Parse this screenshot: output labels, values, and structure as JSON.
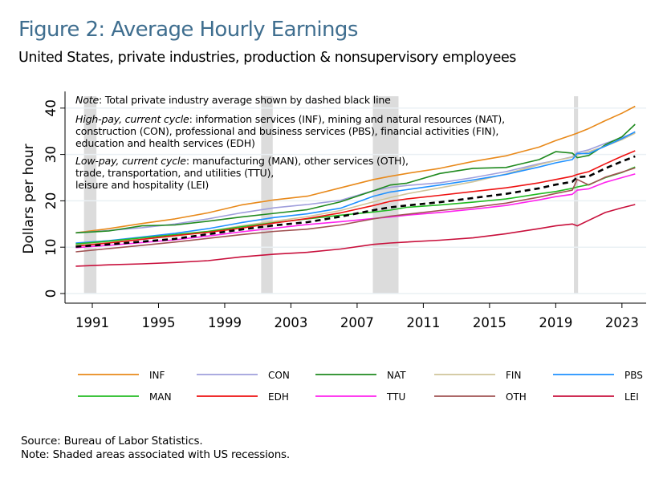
{
  "header": {
    "title": "Figure 2: Average Hourly Earnings",
    "subtitle": "United States, private industries, production & nonsupervisory employees"
  },
  "notes": {
    "note_label": "Note",
    "note_text": ": Total private industry average shown by dashed black line",
    "high_label": "High-pay, current cycle",
    "high_lines": [
      ": information services (INF), mining and natural resources (NAT),",
      "construction (CON), professional and business services (PBS), financial activities (FIN),",
      "education and health services (EDH)"
    ],
    "low_label": "Low-pay, current cycle",
    "low_lines": [
      ": manufacturing (MAN), other services (OTH),",
      "trade, transportation, and utilities (TTU),",
      "leisure and hospitality (LEI)"
    ]
  },
  "footer": {
    "source": "Source: Bureau of Labor Statistics.",
    "note": "Note: Shaded areas associated with US recessions."
  },
  "chart_data": {
    "type": "line",
    "title": "Figure 2: Average Hourly Earnings",
    "subtitle": "United States, private industries, production & nonsupervisory employees",
    "xlabel": "",
    "ylabel": "Dollars per hour",
    "xlim": [
      1990,
      2024
    ],
    "ylim": [
      0,
      42
    ],
    "xticks": [
      1991,
      1995,
      1999,
      2003,
      2007,
      2011,
      2015,
      2019,
      2023
    ],
    "yticks": [
      0,
      10,
      20,
      30,
      40
    ],
    "grid": true,
    "legend_position": "bottom",
    "recessions": [
      {
        "start": 1990.5,
        "end": 1991.25
      },
      {
        "start": 2001.2,
        "end": 2001.9
      },
      {
        "start": 2007.95,
        "end": 2009.5
      },
      {
        "start": 2020.1,
        "end": 2020.35
      }
    ],
    "x": [
      1990,
      1992,
      1994,
      1996,
      1998,
      2000,
      2002,
      2004,
      2006,
      2008,
      2009,
      2010,
      2012,
      2014,
      2016,
      2018,
      2019,
      2020,
      2020.3,
      2021,
      2022,
      2023,
      2023.8
    ],
    "series": [
      {
        "name": "INF",
        "color": "#e8891a",
        "dashed": false,
        "values": [
          13.1,
          14.0,
          15.1,
          16.1,
          17.4,
          19.1,
          20.2,
          21.0,
          22.8,
          24.6,
          25.3,
          25.9,
          27.0,
          28.5,
          29.7,
          31.6,
          33.0,
          34.2,
          34.6,
          35.6,
          37.3,
          38.9,
          40.4
        ]
      },
      {
        "name": "CON",
        "color": "#9f9fdc",
        "dashed": false,
        "values": [
          13.1,
          13.6,
          14.2,
          15.0,
          16.1,
          17.4,
          18.5,
          19.2,
          20.1,
          22.2,
          22.9,
          23.3,
          23.9,
          25.0,
          26.3,
          28.0,
          28.7,
          29.5,
          30.4,
          31.0,
          32.4,
          33.6,
          34.8
        ]
      },
      {
        "name": "NAT",
        "color": "#1f8a1f",
        "dashed": false,
        "values": [
          13.1,
          13.5,
          14.6,
          14.8,
          15.6,
          16.5,
          17.3,
          18.1,
          19.8,
          22.2,
          23.4,
          23.8,
          25.9,
          27.0,
          27.2,
          28.9,
          30.6,
          30.3,
          29.3,
          29.8,
          32.1,
          33.8,
          36.5
        ]
      },
      {
        "name": "FIN",
        "color": "#cfc49a",
        "dashed": false,
        "values": [
          10.5,
          11.0,
          11.7,
          12.4,
          13.4,
          14.6,
          15.6,
          16.6,
          17.9,
          19.8,
          20.7,
          21.5,
          22.8,
          24.1,
          25.8,
          27.8,
          28.7,
          29.4,
          29.9,
          30.6,
          31.8,
          33.2,
          34.6
        ]
      },
      {
        "name": "PBS",
        "color": "#1e90ff",
        "dashed": false,
        "values": [
          10.9,
          11.4,
          12.2,
          13.0,
          14.0,
          15.3,
          16.4,
          17.2,
          18.4,
          21.0,
          21.9,
          22.4,
          23.4,
          24.5,
          25.7,
          27.3,
          28.2,
          28.9,
          30.2,
          30.2,
          31.8,
          33.4,
          34.9
        ]
      },
      {
        "name": "MAN",
        "color": "#22bb22",
        "dashed": false,
        "values": [
          10.7,
          11.3,
          12.0,
          12.7,
          13.4,
          14.4,
          15.3,
          16.1,
          16.9,
          17.6,
          18.0,
          18.6,
          19.1,
          19.7,
          20.4,
          21.5,
          22.0,
          22.7,
          23.0,
          23.5,
          25.0,
          26.1,
          27.3
        ]
      },
      {
        "name": "EDH",
        "color": "#ee1111",
        "dashed": false,
        "values": [
          10.2,
          10.9,
          11.7,
          12.5,
          13.2,
          14.1,
          15.2,
          16.2,
          17.4,
          19.0,
          19.9,
          20.4,
          21.2,
          22.0,
          22.8,
          23.9,
          24.6,
          25.3,
          25.7,
          26.3,
          28.0,
          29.6,
          30.8
        ]
      },
      {
        "name": "TTU",
        "color": "#ff22ee",
        "dashed": false,
        "values": [
          9.9,
          10.4,
          11.0,
          11.6,
          12.4,
          13.3,
          14.1,
          14.9,
          15.5,
          16.2,
          16.5,
          16.9,
          17.5,
          18.2,
          19.0,
          20.2,
          20.9,
          21.4,
          22.3,
          22.6,
          24.0,
          25.0,
          25.8
        ]
      },
      {
        "name": "OTH",
        "color": "#a05252",
        "dashed": false,
        "values": [
          9.0,
          9.7,
          10.4,
          11.1,
          11.9,
          12.7,
          13.4,
          13.9,
          14.8,
          16.1,
          16.7,
          17.1,
          17.9,
          18.6,
          19.5,
          20.8,
          21.6,
          22.3,
          24.6,
          23.4,
          25.1,
          26.2,
          27.1
        ]
      },
      {
        "name": "LEI",
        "color": "#c8103c",
        "dashed": false,
        "values": [
          5.9,
          6.2,
          6.4,
          6.7,
          7.1,
          7.9,
          8.5,
          8.9,
          9.6,
          10.6,
          10.9,
          11.1,
          11.5,
          12.0,
          12.9,
          14.0,
          14.6,
          15.0,
          14.6,
          15.8,
          17.5,
          18.5,
          19.2
        ]
      },
      {
        "name": "Total private",
        "color": "#000000",
        "dashed": true,
        "in_legend": false,
        "values": [
          10.1,
          10.6,
          11.2,
          11.8,
          12.8,
          13.8,
          14.7,
          15.4,
          16.6,
          18.0,
          18.6,
          19.0,
          19.7,
          20.6,
          21.5,
          22.7,
          23.5,
          24.1,
          25.1,
          25.3,
          27.0,
          28.5,
          29.6
        ]
      }
    ]
  }
}
